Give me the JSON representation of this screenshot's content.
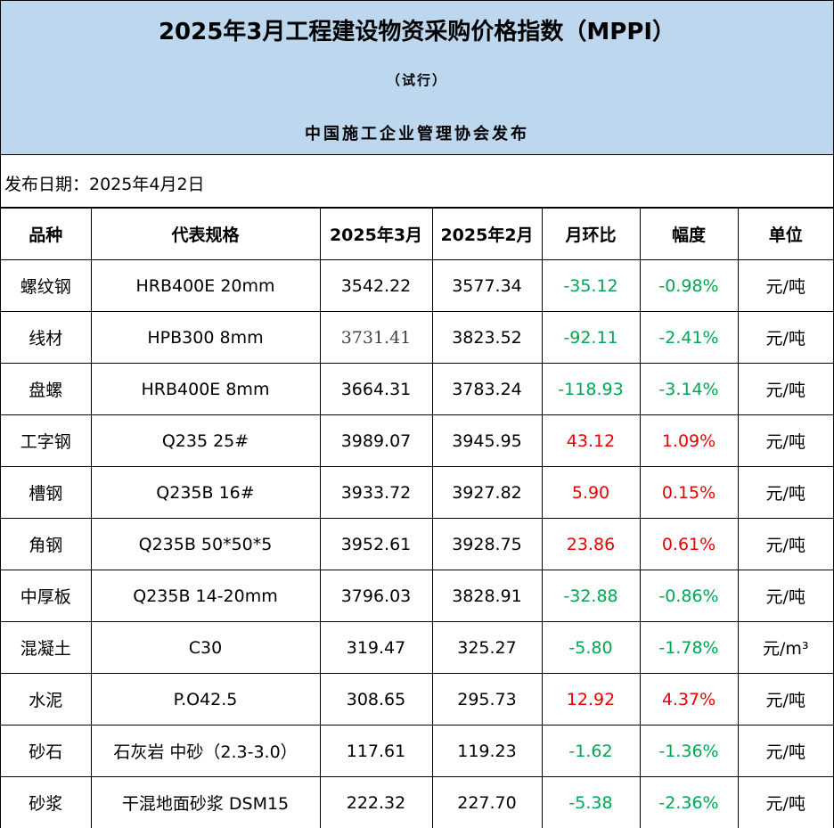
{
  "header": {
    "title": "2025年3月工程建设物资采购价格指数（MPPI）",
    "subtitle": "（试行）",
    "publisher": "中国施工企业管理协会发布"
  },
  "date_label": "发布日期：2025年4月2日",
  "table": {
    "columns": [
      "品种",
      "代表规格",
      "2025年3月",
      "2025年2月",
      "月环比",
      "幅度",
      "单位"
    ],
    "rows": [
      {
        "variety": "螺纹钢",
        "spec": "HRB400E 20mm",
        "mar": "3542.22",
        "feb": "3577.34",
        "mom": "-35.12",
        "pct": "-0.98%",
        "unit": "元/吨",
        "trend": "neg"
      },
      {
        "variety": "线材",
        "spec": "HPB300 8mm",
        "mar": "3731.41",
        "feb": "3823.52",
        "mom": "-92.11",
        "pct": "-2.41%",
        "unit": "元/吨",
        "trend": "neg"
      },
      {
        "variety": "盘螺",
        "spec": "HRB400E 8mm",
        "mar": "3664.31",
        "feb": "3783.24",
        "mom": "-118.93",
        "pct": "-3.14%",
        "unit": "元/吨",
        "trend": "neg"
      },
      {
        "variety": "工字钢",
        "spec": "Q235 25#",
        "mar": "3989.07",
        "feb": "3945.95",
        "mom": "43.12",
        "pct": "1.09%",
        "unit": "元/吨",
        "trend": "pos"
      },
      {
        "variety": "槽钢",
        "spec": "Q235B 16#",
        "mar": "3933.72",
        "feb": "3927.82",
        "mom": "5.90",
        "pct": "0.15%",
        "unit": "元/吨",
        "trend": "pos"
      },
      {
        "variety": "角钢",
        "spec": "Q235B 50*50*5",
        "mar": "3952.61",
        "feb": "3928.75",
        "mom": "23.86",
        "pct": "0.61%",
        "unit": "元/吨",
        "trend": "pos"
      },
      {
        "variety": "中厚板",
        "spec": "Q235B 14-20mm",
        "mar": "3796.03",
        "feb": "3828.91",
        "mom": "-32.88",
        "pct": "-0.86%",
        "unit": "元/吨",
        "trend": "neg"
      },
      {
        "variety": "混凝土",
        "spec": "C30",
        "mar": "319.47",
        "feb": "325.27",
        "mom": "-5.80",
        "pct": "-1.78%",
        "unit": "元/m³",
        "trend": "neg"
      },
      {
        "variety": "水泥",
        "spec": "P.O42.5",
        "mar": "308.65",
        "feb": "295.73",
        "mom": "12.92",
        "pct": "4.37%",
        "unit": "元/吨",
        "trend": "pos"
      },
      {
        "variety": "砂石",
        "spec": "石灰岩 中砂（2.3-3.0）",
        "mar": "117.61",
        "feb": "119.23",
        "mom": "-1.62",
        "pct": "-1.36%",
        "unit": "元/吨",
        "trend": "neg"
      },
      {
        "variety": "砂浆",
        "spec": "干混地面砂浆 DSM15",
        "mar": "222.32",
        "feb": "227.70",
        "mom": "-5.38",
        "pct": "-2.36%",
        "unit": "元/吨",
        "trend": "neg"
      }
    ]
  },
  "colors": {
    "header_bg": "#bdd7ee",
    "negative": "#00a651",
    "positive": "#e60000"
  }
}
